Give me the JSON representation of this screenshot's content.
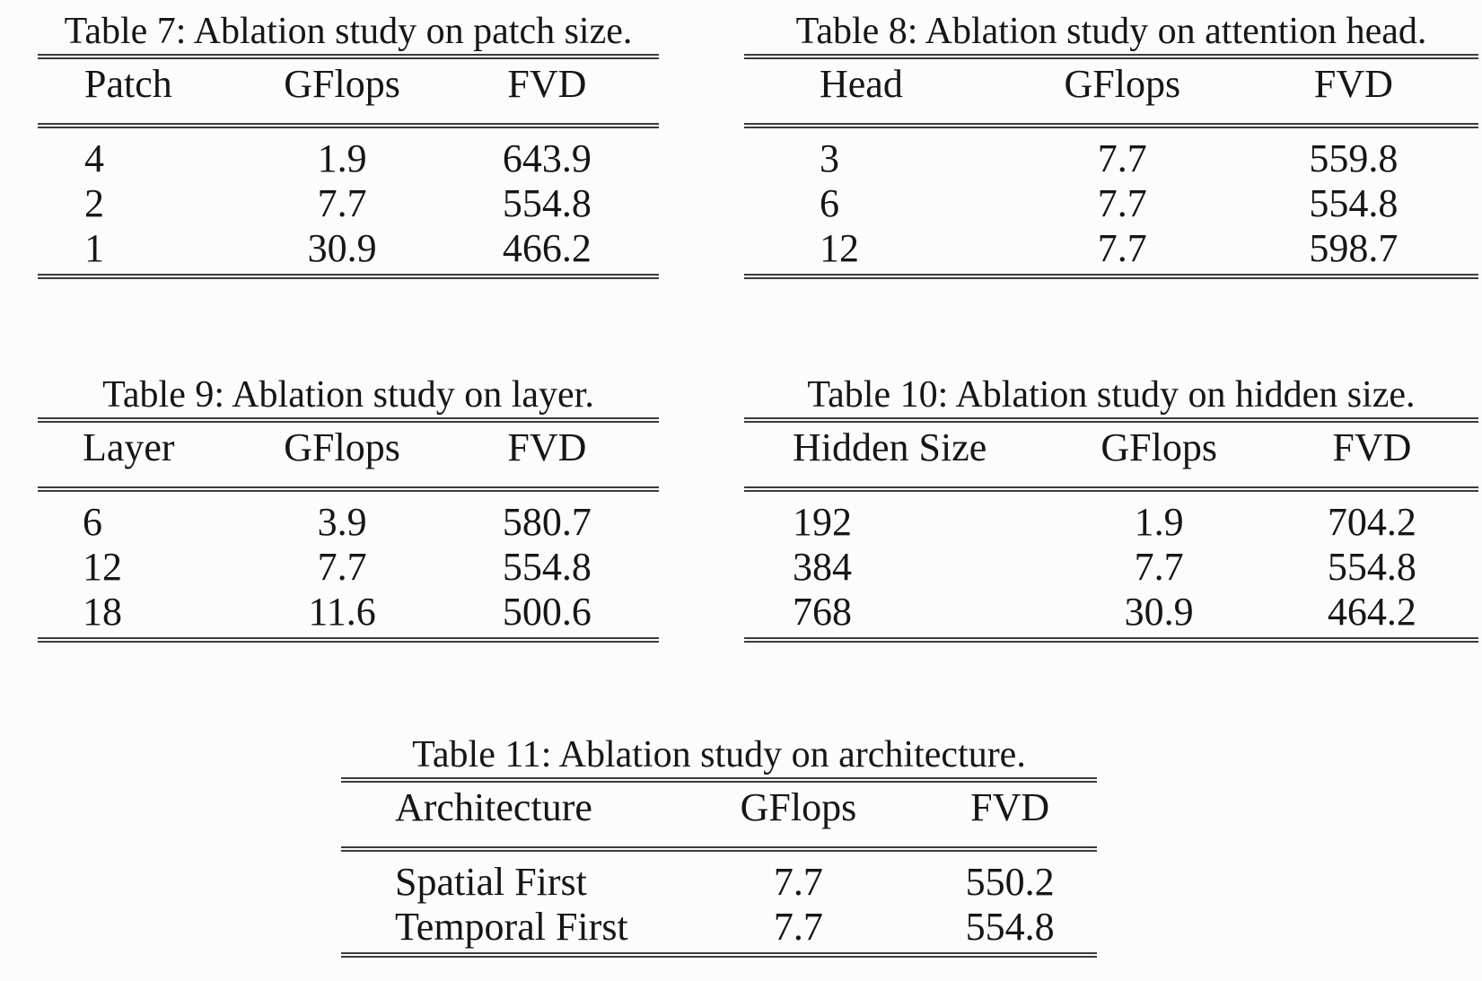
{
  "page": {
    "background_color": "#fcfcfc",
    "text_color": "#161616",
    "rule_color": "#3b3b3b",
    "content_type": "academic-paper-ablation-tables"
  },
  "tables": [
    {
      "caption": "Table 7: Ablation study on patch size.",
      "columns": [
        "Patch",
        "GFlops",
        "FVD"
      ],
      "rows": [
        [
          "4",
          "1.9",
          "643.9"
        ],
        [
          "2",
          "7.7",
          "554.8"
        ],
        [
          "1",
          "30.9",
          "466.2"
        ]
      ]
    },
    {
      "caption": "Table 8: Ablation study on attention head.",
      "columns": [
        "Head",
        "GFlops",
        "FVD"
      ],
      "rows": [
        [
          "3",
          "7.7",
          "559.8"
        ],
        [
          "6",
          "7.7",
          "554.8"
        ],
        [
          "12",
          "7.7",
          "598.7"
        ]
      ]
    },
    {
      "caption": "Table 9: Ablation study on layer.",
      "columns": [
        "Layer",
        "GFlops",
        "FVD"
      ],
      "rows": [
        [
          "6",
          "3.9",
          "580.7"
        ],
        [
          "12",
          "7.7",
          "554.8"
        ],
        [
          "18",
          "11.6",
          "500.6"
        ]
      ]
    },
    {
      "caption": "Table 10: Ablation study on hidden size.",
      "columns": [
        "Hidden Size",
        "GFlops",
        "FVD"
      ],
      "rows": [
        [
          "192",
          "1.9",
          "704.2"
        ],
        [
          "384",
          "7.7",
          "554.8"
        ],
        [
          "768",
          "30.9",
          "464.2"
        ]
      ]
    },
    {
      "caption": "Table 11: Ablation study on architecture.",
      "columns": [
        "Architecture",
        "GFlops",
        "FVD"
      ],
      "rows": [
        [
          "Spatial First",
          "7.7",
          "550.2"
        ],
        [
          "Temporal First",
          "7.7",
          "554.8"
        ]
      ]
    }
  ]
}
